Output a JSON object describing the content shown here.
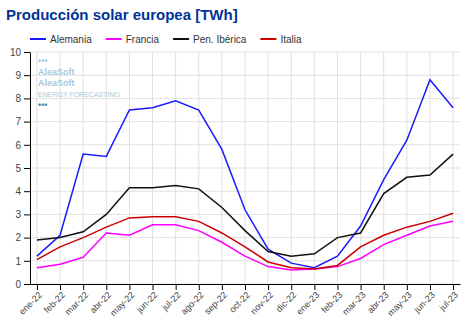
{
  "chart_data": {
    "type": "line",
    "title": "Producción solar europea [TWh]",
    "categories": [
      "ene-22",
      "feb-22",
      "mar-22",
      "abr-22",
      "may-22",
      "jun-22",
      "jul-22",
      "ago-22",
      "sep-22",
      "oct-22",
      "nov-22",
      "dic-22",
      "ene-23",
      "feb-23",
      "mar-23",
      "abr-23",
      "may-23",
      "jun-23",
      "jul-23"
    ],
    "series": [
      {
        "name": "Alemania",
        "color": "#1a1aff",
        "values": [
          1.2,
          2.1,
          5.6,
          5.5,
          7.5,
          7.6,
          7.9,
          7.5,
          5.8,
          3.2,
          1.5,
          0.9,
          0.7,
          1.2,
          2.5,
          4.5,
          6.2,
          8.8,
          7.6
        ]
      },
      {
        "name": "Francia",
        "color": "#ff00ff",
        "values": [
          0.7,
          0.85,
          1.15,
          2.2,
          2.1,
          2.55,
          2.55,
          2.3,
          1.8,
          1.2,
          0.75,
          0.6,
          0.65,
          0.75,
          1.1,
          1.7,
          2.1,
          2.5,
          2.7
        ]
      },
      {
        "name": "Pen. Ibérica",
        "color": "#111111",
        "values": [
          1.9,
          2.0,
          2.25,
          3.0,
          4.15,
          4.15,
          4.25,
          4.1,
          3.3,
          2.3,
          1.4,
          1.2,
          1.3,
          2.0,
          2.2,
          3.9,
          4.6,
          4.7,
          5.6
        ]
      },
      {
        "name": "Italia",
        "color": "#cc0000",
        "values": [
          1.05,
          1.6,
          2.0,
          2.45,
          2.85,
          2.9,
          2.9,
          2.7,
          2.2,
          1.6,
          0.95,
          0.7,
          0.65,
          0.8,
          1.6,
          2.1,
          2.45,
          2.7,
          3.05
        ]
      }
    ],
    "ylim": [
      0,
      10
    ],
    "yticks": [
      0,
      1,
      2,
      3,
      4,
      5,
      6,
      7,
      8,
      9,
      10
    ],
    "grid": true,
    "legend": "top",
    "annotations": [
      "•••\nAleaSoft",
      "AleaSoft",
      "ENERGY FORECASTING",
      "•••"
    ]
  }
}
